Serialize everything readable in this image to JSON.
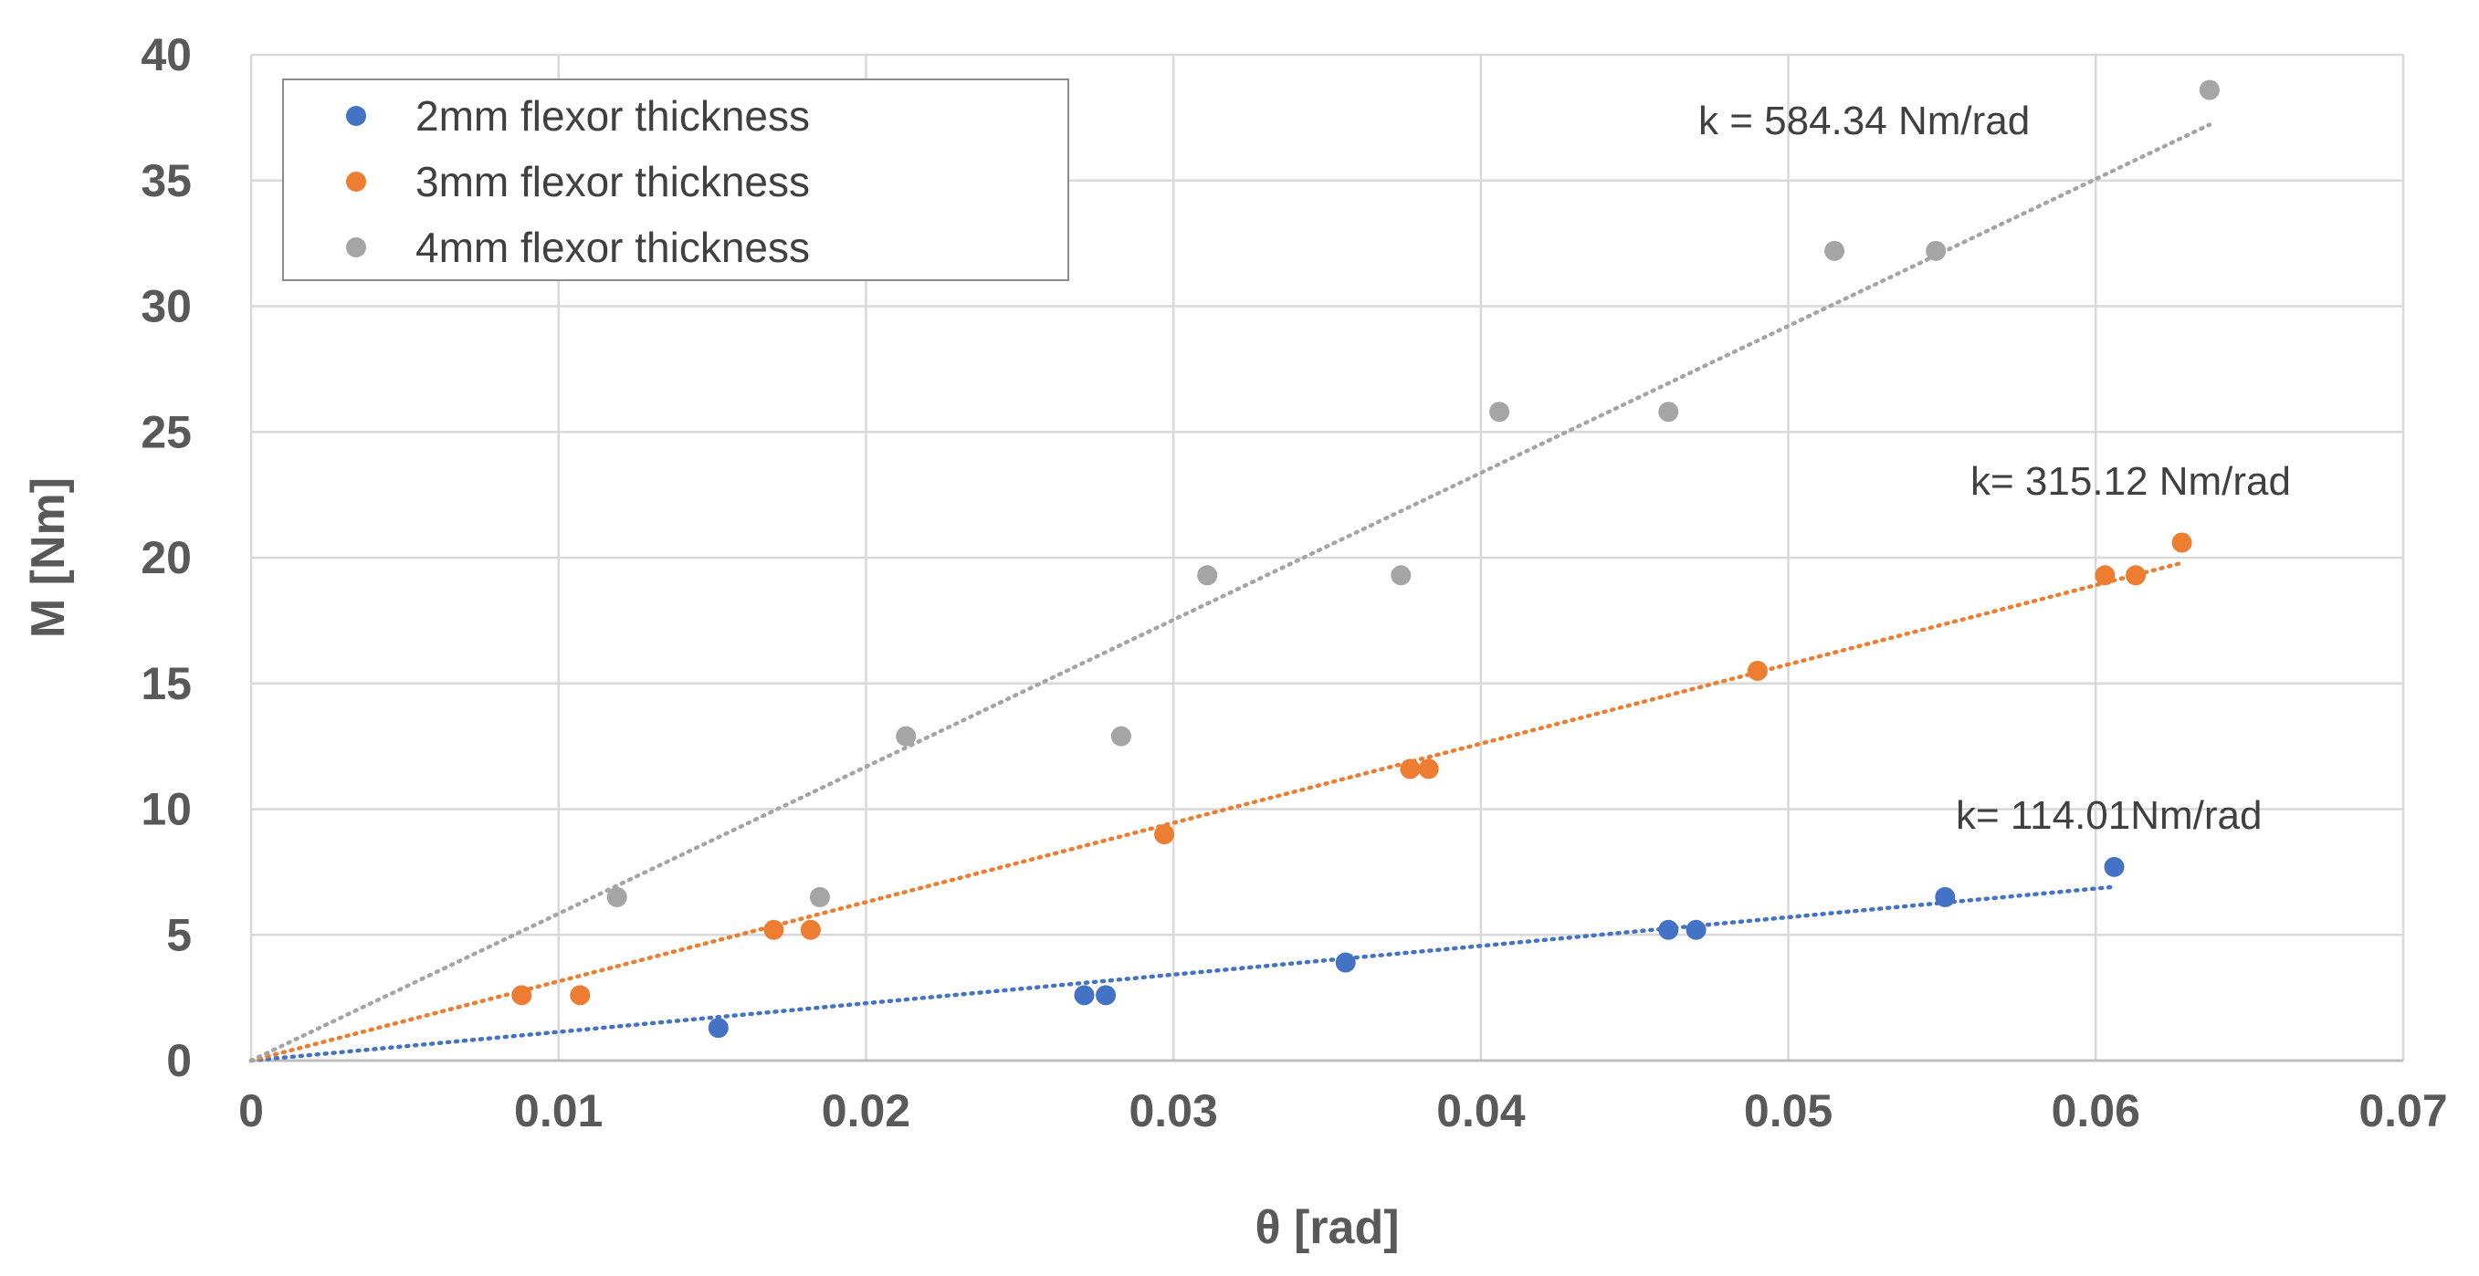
{
  "chart_data": {
    "type": "scatter",
    "title": "",
    "xlabel": "θ [rad]",
    "ylabel": "M [Nm]",
    "xlim": [
      0,
      0.07
    ],
    "ylim": [
      0,
      40
    ],
    "xticks": [
      0,
      0.01,
      0.02,
      0.03,
      0.04,
      0.05,
      0.06,
      0.07
    ],
    "xtick_labels": [
      "0",
      "0.01",
      "0.02",
      "0.03",
      "0.04",
      "0.05",
      "0.06",
      "0.07"
    ],
    "yticks": [
      0,
      5,
      10,
      15,
      20,
      25,
      30,
      35,
      40
    ],
    "ytick_labels": [
      "0",
      "5",
      "10",
      "15",
      "20",
      "25",
      "30",
      "35",
      "40"
    ],
    "grid": true,
    "legend_position": "top-left",
    "series": [
      {
        "name": "2mm flexor thickness",
        "color": "#4472C4",
        "x": [
          0.0152,
          0.0271,
          0.0278,
          0.0356,
          0.0461,
          0.047,
          0.0551,
          0.0606
        ],
        "y": [
          1.3,
          2.6,
          2.6,
          3.9,
          5.2,
          5.2,
          6.5,
          7.7
        ],
        "trendline": {
          "x": [
            0,
            0.0606
          ],
          "y": [
            0,
            6.91
          ],
          "label": "k= 114.01Nm/rad"
        }
      },
      {
        "name": "3mm flexor thickness",
        "color": "#ED7D31",
        "x": [
          0.0088,
          0.0107,
          0.017,
          0.0182,
          0.0297,
          0.0377,
          0.0383,
          0.049,
          0.0603,
          0.0613,
          0.0628
        ],
        "y": [
          2.6,
          2.6,
          5.2,
          5.2,
          9.0,
          11.6,
          11.6,
          15.5,
          19.3,
          19.3,
          20.6
        ],
        "trendline": {
          "x": [
            0,
            0.0628
          ],
          "y": [
            0,
            19.79
          ],
          "label": "k= 315.12 Nm/rad"
        }
      },
      {
        "name": "4mm flexor thickness",
        "color": "#A5A5A5",
        "x": [
          0.0119,
          0.0185,
          0.0213,
          0.0283,
          0.0311,
          0.0374,
          0.0406,
          0.0461,
          0.0515,
          0.0548,
          0.0637
        ],
        "y": [
          6.5,
          6.5,
          12.9,
          12.9,
          19.3,
          19.3,
          25.8,
          25.8,
          32.2,
          32.2,
          38.6
        ],
        "trendline": {
          "x": [
            0,
            0.0637
          ],
          "y": [
            0,
            37.22
          ],
          "label": "k = 584.34 Nm/rad"
        }
      }
    ]
  }
}
